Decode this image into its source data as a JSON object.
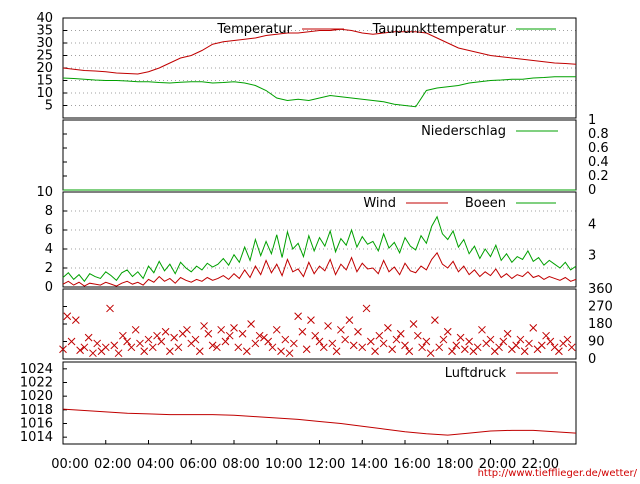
{
  "source_url": "http://www.tiefflieger.de/wetter/",
  "colors": {
    "red": "#c00000",
    "green": "#00a000",
    "grid": "#a0a0a0",
    "axis": "#000000"
  },
  "x_tick_labels": [
    "00:00",
    "02:00",
    "04:00",
    "06:00",
    "08:00",
    "10:00",
    "12:00",
    "14:00",
    "16:00",
    "18:00",
    "20:00",
    "22:00"
  ],
  "chart_data": [
    {
      "id": "temperature",
      "type": "line",
      "x_unit": "hours",
      "xlim": [
        0,
        24
      ],
      "ylim": [
        0,
        40
      ],
      "y_ticks": [
        5,
        10,
        15,
        20,
        25,
        30,
        35,
        40
      ],
      "grid": true,
      "legend_position": "top-right",
      "series": [
        {
          "name": "Temperatur",
          "color": "#c00000",
          "x": [
            0,
            0.5,
            1,
            1.5,
            2,
            2.5,
            3,
            3.5,
            4,
            4.5,
            5,
            5.5,
            6,
            6.5,
            7,
            7.5,
            8,
            8.5,
            9,
            9.5,
            10,
            10.5,
            11,
            11.5,
            12,
            12.5,
            13,
            13.5,
            14,
            14.5,
            15,
            15.5,
            16,
            16.5,
            17,
            17.5,
            18,
            18.5,
            19,
            19.5,
            20,
            20.5,
            21,
            21.5,
            22,
            22.5,
            23,
            23.5,
            24
          ],
          "y": [
            20,
            19.5,
            19,
            18.8,
            18.5,
            18,
            17.8,
            17.6,
            18.5,
            20,
            22,
            24,
            25,
            27,
            29.5,
            30.5,
            31,
            31.5,
            32,
            33,
            33.5,
            34,
            34,
            34.5,
            35,
            35,
            35.5,
            35,
            34,
            33.5,
            34,
            34.5,
            34.5,
            34.5,
            34,
            32,
            30,
            28,
            27,
            26,
            25,
            24.5,
            24,
            23.5,
            23,
            22.5,
            22,
            21.8,
            21.5
          ]
        },
        {
          "name": "Taupunkttemperatur",
          "color": "#00a000",
          "x": [
            0,
            0.5,
            1,
            1.5,
            2,
            2.5,
            3,
            3.5,
            4,
            4.5,
            5,
            5.5,
            6,
            6.5,
            7,
            7.5,
            8,
            8.5,
            9,
            9.5,
            10,
            10.5,
            11,
            11.5,
            12,
            12.5,
            13,
            13.5,
            14,
            14.5,
            15,
            15.5,
            16,
            16.5,
            17,
            17.5,
            18,
            18.5,
            19,
            19.5,
            20,
            20.5,
            21,
            21.5,
            22,
            22.5,
            23,
            23.5,
            24
          ],
          "y": [
            16,
            15.8,
            15.5,
            15.2,
            15,
            15,
            14.8,
            14.5,
            14.5,
            14.2,
            14,
            14.3,
            14.5,
            14.5,
            14,
            14.2,
            14.5,
            14,
            13,
            11,
            8,
            7,
            7.5,
            7,
            8,
            9,
            8.5,
            8,
            7.5,
            7,
            6.5,
            5.5,
            5,
            4.5,
            11,
            12,
            12.5,
            13,
            14,
            14.5,
            15,
            15.2,
            15.5,
            15.5,
            16,
            16.2,
            16.5,
            16.5,
            16.5
          ]
        }
      ]
    },
    {
      "id": "precipitation",
      "type": "line",
      "xlim": [
        0,
        24
      ],
      "ylim": [
        0,
        1
      ],
      "y_ticks": [
        0,
        0.2,
        0.4,
        0.6,
        0.8,
        1
      ],
      "y_tick_labels": [
        "0",
        "0.2",
        "0.4",
        "0.6",
        "0.8",
        "1"
      ],
      "grid": false,
      "legend_position": "top-right",
      "series": [
        {
          "name": "Niederschlag",
          "color": "#00a000",
          "x": [
            0,
            24
          ],
          "y": [
            0,
            0
          ]
        }
      ]
    },
    {
      "id": "wind",
      "type": "line",
      "xlim": [
        0,
        24
      ],
      "ylim": [
        0,
        10
      ],
      "y_ticks": [
        0,
        2,
        4,
        6,
        8,
        10
      ],
      "right_labels": [
        "3",
        "4"
      ],
      "right_label_values": [
        3.3,
        6.6
      ],
      "grid": true,
      "legend_position": "top-right",
      "series": [
        {
          "name": "Wind",
          "color": "#c00000",
          "x": [
            0,
            0.25,
            0.5,
            0.75,
            1,
            1.25,
            1.5,
            1.75,
            2,
            2.25,
            2.5,
            2.75,
            3,
            3.25,
            3.5,
            3.75,
            4,
            4.25,
            4.5,
            4.75,
            5,
            5.25,
            5.5,
            5.75,
            6,
            6.25,
            6.5,
            6.75,
            7,
            7.25,
            7.5,
            7.75,
            8,
            8.25,
            8.5,
            8.75,
            9,
            9.25,
            9.5,
            9.75,
            10,
            10.25,
            10.5,
            10.75,
            11,
            11.25,
            11.5,
            11.75,
            12,
            12.25,
            12.5,
            12.75,
            13,
            13.25,
            13.5,
            13.75,
            14,
            14.25,
            14.5,
            14.75,
            15,
            15.25,
            15.5,
            15.75,
            16,
            16.25,
            16.5,
            16.75,
            17,
            17.25,
            17.5,
            17.75,
            18,
            18.25,
            18.5,
            18.75,
            19,
            19.25,
            19.5,
            19.75,
            20,
            20.25,
            20.5,
            20.75,
            21,
            21.25,
            21.5,
            21.75,
            22,
            22.25,
            22.5,
            22.75,
            23,
            23.25,
            23.5,
            23.75,
            24
          ],
          "y": [
            0.3,
            0.6,
            0.2,
            0.5,
            0.1,
            0.4,
            0.3,
            0.2,
            0.5,
            0.3,
            0.1,
            0.4,
            0.6,
            0.3,
            0.5,
            0.2,
            0.8,
            0.5,
            1.1,
            0.6,
            0.9,
            0.4,
            1,
            0.7,
            0.5,
            0.8,
            0.6,
            1,
            0.7,
            0.9,
            1.2,
            0.8,
            1.4,
            0.9,
            1.8,
            1,
            2.2,
            1.3,
            2.8,
            1.5,
            2.4,
            1.2,
            2.9,
            1.6,
            1.9,
            1.1,
            2.6,
            1.4,
            2.2,
            1.7,
            2.9,
            1.3,
            2.4,
            1.8,
            3.1,
            1.6,
            2.5,
            1.9,
            2,
            1.4,
            2.8,
            1.6,
            2.1,
            1.3,
            2.5,
            1.7,
            1.5,
            2.2,
            1.8,
            2.9,
            3.6,
            2.4,
            2,
            2.7,
            1.6,
            2.2,
            1.3,
            1.8,
            1.1,
            1.6,
            1.2,
            1.9,
            1,
            1.4,
            0.9,
            1.3,
            1.1,
            1.6,
            1,
            1.2,
            0.8,
            1.1,
            0.9,
            0.7,
            1,
            0.6,
            0.8
          ]
        },
        {
          "name": "Boeen",
          "color": "#00a000",
          "x": [
            0,
            0.25,
            0.5,
            0.75,
            1,
            1.25,
            1.5,
            1.75,
            2,
            2.25,
            2.5,
            2.75,
            3,
            3.25,
            3.5,
            3.75,
            4,
            4.25,
            4.5,
            4.75,
            5,
            5.25,
            5.5,
            5.75,
            6,
            6.25,
            6.5,
            6.75,
            7,
            7.25,
            7.5,
            7.75,
            8,
            8.25,
            8.5,
            8.75,
            9,
            9.25,
            9.5,
            9.75,
            10,
            10.25,
            10.5,
            10.75,
            11,
            11.25,
            11.5,
            11.75,
            12,
            12.25,
            12.5,
            12.75,
            13,
            13.25,
            13.5,
            13.75,
            14,
            14.25,
            14.5,
            14.75,
            15,
            15.25,
            15.5,
            15.75,
            16,
            16.25,
            16.5,
            16.75,
            17,
            17.25,
            17.5,
            17.75,
            18,
            18.25,
            18.5,
            18.75,
            19,
            19.25,
            19.5,
            19.75,
            20,
            20.25,
            20.5,
            20.75,
            21,
            21.25,
            21.5,
            21.75,
            22,
            22.25,
            22.5,
            22.75,
            23,
            23.25,
            23.5,
            23.75,
            24
          ],
          "y": [
            1,
            1.5,
            0.8,
            1.3,
            0.6,
            1.4,
            1.1,
            0.9,
            1.6,
            1.2,
            0.7,
            1.5,
            1.8,
            1.1,
            1.6,
            0.9,
            2.2,
            1.5,
            2.7,
            1.7,
            2.4,
            1.4,
            2.6,
            2,
            1.6,
            2.2,
            1.8,
            2.5,
            2.1,
            2.4,
            3,
            2.3,
            3.4,
            2.6,
            4.2,
            2.8,
            5,
            3.3,
            4.8,
            3.5,
            5.5,
            3.1,
            5.8,
            4,
            4.6,
            3.2,
            5.4,
            3.8,
            5.2,
            4.3,
            5.9,
            3.7,
            5.1,
            4.4,
            6,
            4.2,
            5.3,
            4.5,
            4.8,
            3.8,
            5.6,
            4.1,
            4.7,
            3.6,
            5.2,
            4.3,
            3.9,
            5.4,
            4.6,
            6.4,
            7.4,
            5.6,
            5,
            5.9,
            4.2,
            5,
            3.5,
            4.3,
            3,
            4,
            3.2,
            4.4,
            2.8,
            3.5,
            2.6,
            3.2,
            2.9,
            3.8,
            2.7,
            3.1,
            2.3,
            2.8,
            2.4,
            2,
            2.6,
            1.8,
            2.2
          ]
        }
      ]
    },
    {
      "id": "wind_direction",
      "type": "scatter",
      "xlim": [
        0,
        24
      ],
      "ylim": [
        0,
        360
      ],
      "y_ticks": [
        0,
        90,
        180,
        270,
        360
      ],
      "marker": "x",
      "color": "#c00000",
      "x": [
        0,
        0.2,
        0.4,
        0.6,
        0.8,
        1,
        1.2,
        1.4,
        1.6,
        1.8,
        2,
        2.2,
        2.4,
        2.6,
        2.8,
        3,
        3.2,
        3.4,
        3.6,
        3.8,
        4,
        4.2,
        4.4,
        4.6,
        4.8,
        5,
        5.2,
        5.4,
        5.6,
        5.8,
        6,
        6.2,
        6.4,
        6.6,
        6.8,
        7,
        7.2,
        7.4,
        7.6,
        7.8,
        8,
        8.2,
        8.4,
        8.6,
        8.8,
        9,
        9.2,
        9.4,
        9.6,
        9.8,
        10,
        10.2,
        10.4,
        10.6,
        10.8,
        11,
        11.2,
        11.4,
        11.6,
        11.8,
        12,
        12.2,
        12.4,
        12.6,
        12.8,
        13,
        13.2,
        13.4,
        13.6,
        13.8,
        14,
        14.2,
        14.4,
        14.6,
        14.8,
        15,
        15.2,
        15.4,
        15.6,
        15.8,
        16,
        16.2,
        16.4,
        16.6,
        16.8,
        17,
        17.2,
        17.4,
        17.6,
        17.8,
        18,
        18.2,
        18.4,
        18.6,
        18.8,
        19,
        19.2,
        19.4,
        19.6,
        19.8,
        20,
        20.2,
        20.4,
        20.6,
        20.8,
        21,
        21.2,
        21.4,
        21.6,
        21.8,
        22,
        22.2,
        22.4,
        22.6,
        22.8,
        23,
        23.2,
        23.4,
        23.6,
        23.8
      ],
      "y": [
        50,
        220,
        90,
        200,
        45,
        60,
        110,
        30,
        80,
        40,
        60,
        260,
        70,
        30,
        120,
        90,
        60,
        150,
        80,
        40,
        100,
        60,
        120,
        90,
        140,
        40,
        110,
        60,
        130,
        150,
        80,
        100,
        40,
        170,
        130,
        70,
        60,
        150,
        90,
        120,
        160,
        60,
        130,
        40,
        180,
        80,
        120,
        110,
        90,
        60,
        150,
        40,
        100,
        30,
        80,
        220,
        140,
        50,
        200,
        120,
        90,
        60,
        170,
        80,
        40,
        150,
        100,
        200,
        70,
        140,
        60,
        260,
        90,
        40,
        120,
        80,
        160,
        50,
        100,
        130,
        70,
        40,
        180,
        120,
        60,
        90,
        30,
        200,
        60,
        100,
        140,
        40,
        70,
        110,
        50,
        90,
        40,
        60,
        150,
        80,
        100,
        40,
        60,
        90,
        130,
        50,
        70,
        100,
        40,
        80,
        160,
        50,
        70,
        120,
        90,
        60,
        40,
        80,
        100,
        60
      ]
    },
    {
      "id": "pressure",
      "type": "line",
      "xlim": [
        0,
        24
      ],
      "ylim": [
        1013,
        1025
      ],
      "y_ticks": [
        1014,
        1016,
        1018,
        1020,
        1022,
        1024
      ],
      "grid": false,
      "legend_position": "top-right",
      "series": [
        {
          "name": "Luftdruck",
          "color": "#c00000",
          "x": [
            0,
            1,
            2,
            3,
            4,
            5,
            6,
            7,
            8,
            9,
            10,
            11,
            12,
            13,
            14,
            15,
            16,
            17,
            18,
            19,
            20,
            21,
            22,
            23,
            24
          ],
          "y": [
            1018.1,
            1017.9,
            1017.7,
            1017.5,
            1017.4,
            1017.3,
            1017.3,
            1017.3,
            1017.2,
            1017.0,
            1016.8,
            1016.6,
            1016.3,
            1016.0,
            1015.6,
            1015.2,
            1014.8,
            1014.5,
            1014.3,
            1014.6,
            1014.9,
            1015.0,
            1015.0,
            1014.8,
            1014.6
          ]
        }
      ]
    }
  ]
}
